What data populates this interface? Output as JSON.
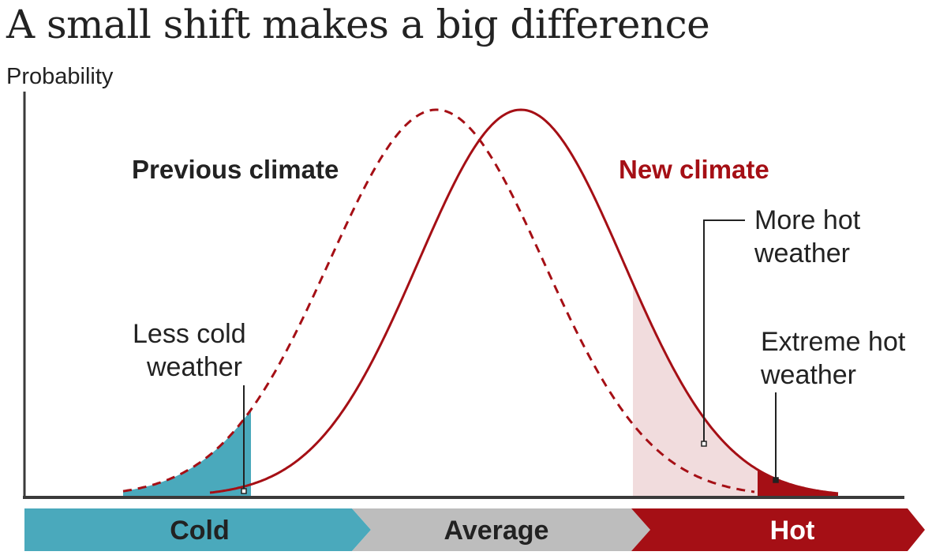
{
  "title": "A small shift makes a big difference",
  "y_axis_label": "Probability",
  "series": {
    "previous": {
      "label": "Previous climate",
      "style": "dashed"
    },
    "new": {
      "label": "New climate",
      "style": "solid"
    }
  },
  "annotations": {
    "less_cold": [
      "Less cold",
      "weather"
    ],
    "more_hot": [
      "More hot",
      "weather"
    ],
    "extreme_hot": [
      "Extreme hot",
      "weather"
    ]
  },
  "bands": {
    "cold": "Cold",
    "average": "Average",
    "hot": "Hot"
  },
  "colors": {
    "text": "#222222",
    "curve": "#a50f15",
    "cold": "#4aa9bc",
    "average": "#bdbdbd",
    "hot": "#a50f15",
    "more_hot_fill": "#f1dcdd",
    "axis": "#3a3a3a"
  }
}
